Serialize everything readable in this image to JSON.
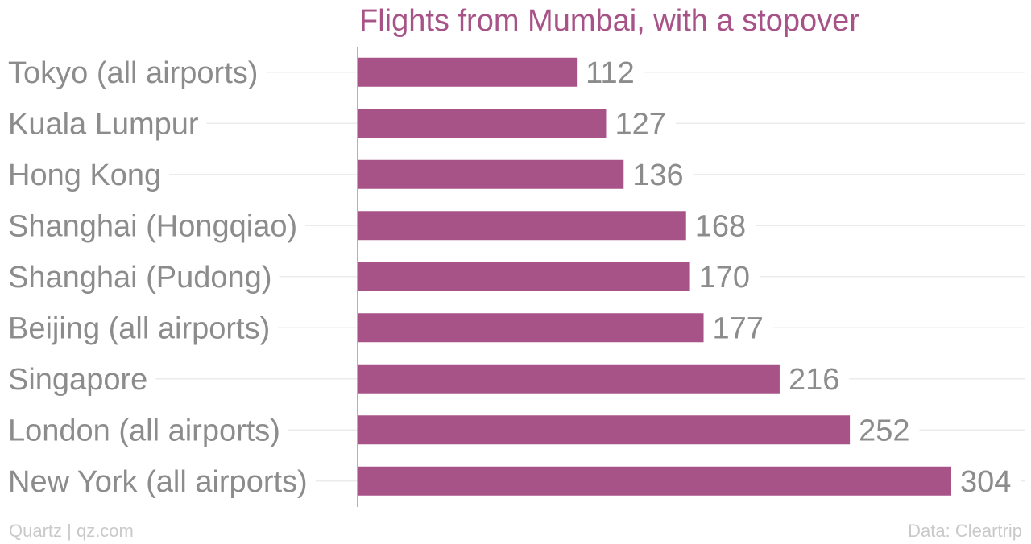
{
  "chart_data": {
    "type": "bar",
    "orientation": "horizontal",
    "title": "Flights from Mumbai, with a stopover",
    "categories": [
      "Tokyo (all airports)",
      "Kuala Lumpur",
      "Hong Kong",
      "Shanghai (Hongqiao)",
      "Shanghai (Pudong)",
      "Beijing (all airports)",
      "Singapore",
      "London (all airports)",
      "New York (all airports)"
    ],
    "values": [
      112,
      127,
      136,
      168,
      170,
      177,
      216,
      252,
      304
    ],
    "xlim": [
      0,
      304
    ],
    "grid": "horizontal",
    "data_labels": true
  },
  "colors": {
    "bar": "#a85387",
    "title": "#a85387",
    "text": "#8c8c8c",
    "footer": "#c9c9c9"
  },
  "footer": {
    "source_left": "Quartz | qz.com",
    "source_right": "Data: Cleartrip"
  }
}
